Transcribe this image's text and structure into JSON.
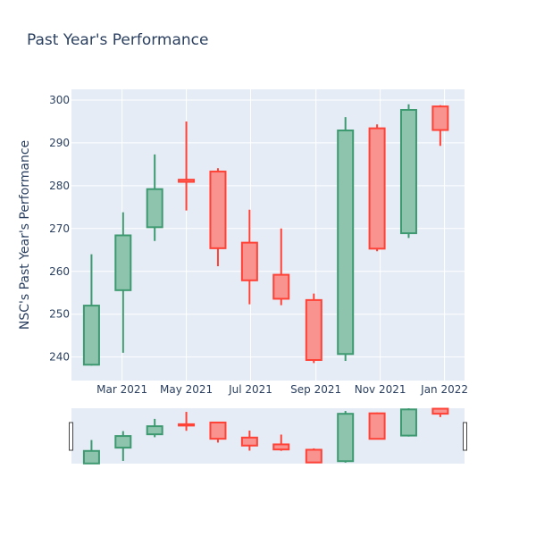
{
  "chart_data": {
    "type": "candlestick",
    "title": "Past Year's Performance",
    "ylabel": "NSC's Past Year's Performance",
    "xlabel": "",
    "ylim": [
      234.5,
      302.5
    ],
    "xlim": [
      "2021-01-12",
      "2022-01-20"
    ],
    "y_ticks": [
      240,
      250,
      260,
      270,
      280,
      290,
      300
    ],
    "x_ticks": [
      {
        "date": "2021-03-01",
        "label": "Mar 2021"
      },
      {
        "date": "2021-05-01",
        "label": "May 2021"
      },
      {
        "date": "2021-07-01",
        "label": "Jul 2021"
      },
      {
        "date": "2021-09-01",
        "label": "Sep 2021"
      },
      {
        "date": "2021-11-01",
        "label": "Nov 2021"
      },
      {
        "date": "2022-01-01",
        "label": "Jan 2022"
      }
    ],
    "grid": true,
    "rangeslider": true,
    "colors": {
      "increasing_line": "#3d9970",
      "increasing_fill": "#8ec4ad",
      "decreasing_line": "#ff4136",
      "decreasing_fill": "#f89390",
      "plot_bg": "#e5ecf6",
      "grid": "#ffffff",
      "text": "#2a3f5f"
    },
    "candles": [
      {
        "date": "2021-01-31",
        "open": 238.2,
        "high": 264.0,
        "low": 238.0,
        "close": 252.0
      },
      {
        "date": "2021-03-02",
        "open": 255.6,
        "high": 273.8,
        "low": 241.0,
        "close": 268.4
      },
      {
        "date": "2021-04-01",
        "open": 270.3,
        "high": 287.3,
        "low": 267.1,
        "close": 279.2
      },
      {
        "date": "2021-05-01",
        "open": 281.4,
        "high": 295.0,
        "low": 274.2,
        "close": 280.9
      },
      {
        "date": "2021-05-31",
        "open": 283.3,
        "high": 284.1,
        "low": 261.2,
        "close": 265.4
      },
      {
        "date": "2021-06-30",
        "open": 266.7,
        "high": 274.4,
        "low": 252.3,
        "close": 257.9
      },
      {
        "date": "2021-07-30",
        "open": 259.2,
        "high": 270.0,
        "low": 252.1,
        "close": 253.6
      },
      {
        "date": "2021-08-30",
        "open": 253.3,
        "high": 254.8,
        "low": 238.6,
        "close": 239.3
      },
      {
        "date": "2021-09-29",
        "open": 240.7,
        "high": 296.0,
        "low": 239.1,
        "close": 292.9
      },
      {
        "date": "2021-10-29",
        "open": 293.4,
        "high": 294.3,
        "low": 264.7,
        "close": 265.3
      },
      {
        "date": "2021-11-28",
        "open": 268.9,
        "high": 299.0,
        "low": 267.8,
        "close": 297.7
      },
      {
        "date": "2021-12-28",
        "open": 298.5,
        "high": 298.8,
        "low": 289.3,
        "close": 293.0
      }
    ]
  }
}
